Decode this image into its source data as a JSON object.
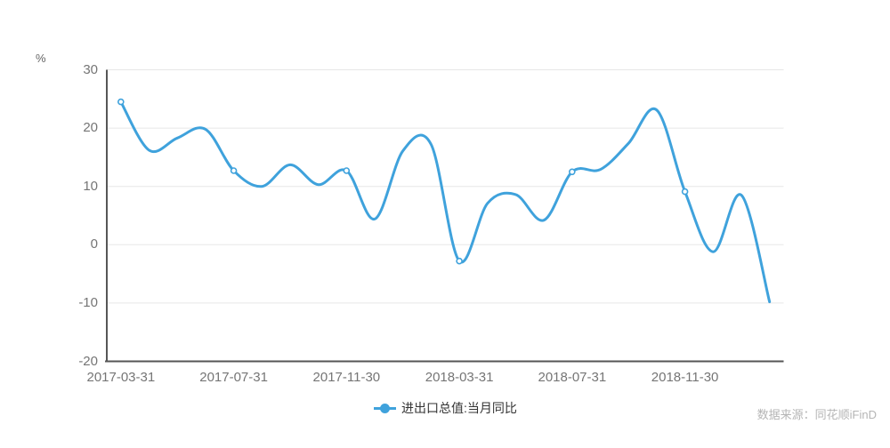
{
  "chart_data": {
    "type": "line",
    "smooth": true,
    "y_axis_unit": "%",
    "ylim": [
      -20,
      30
    ],
    "yticks": [
      30,
      20,
      10,
      0,
      -10,
      -20
    ],
    "grid": true,
    "legend_position": "bottom-center",
    "x_tick_labels": [
      "2017-03-31",
      "2017-07-31",
      "2017-11-30",
      "2018-03-31",
      "2018-07-31",
      "2018-11-30"
    ],
    "x_tick_indices": [
      0,
      4,
      8,
      12,
      16,
      20
    ],
    "series": [
      {
        "name": "进出口总值:当月同比",
        "color": "#3fa2dc",
        "values": [
          24.5,
          16.2,
          18.3,
          19.8,
          12.7,
          10.0,
          13.7,
          10.3,
          12.7,
          4.4,
          16.1,
          17.2,
          -2.8,
          7.1,
          8.6,
          4.2,
          12.5,
          12.9,
          17.4,
          23.1,
          9.1,
          -1.2,
          8.5,
          -9.8
        ],
        "marker_indices": [
          0,
          4,
          8,
          12,
          16,
          20
        ]
      }
    ]
  },
  "legend": {
    "items": [
      {
        "label": "进出口总值:当月同比",
        "color": "#3fa2dc"
      }
    ]
  },
  "footer": {
    "source_text": "数据来源：同花顺iFinD"
  },
  "colors": {
    "axis": "#565656",
    "grid": "#e7e7e7",
    "tick_label": "#757575",
    "legend_text": "#333333",
    "source_text": "#b5b5b5",
    "background": "#ffffff"
  }
}
